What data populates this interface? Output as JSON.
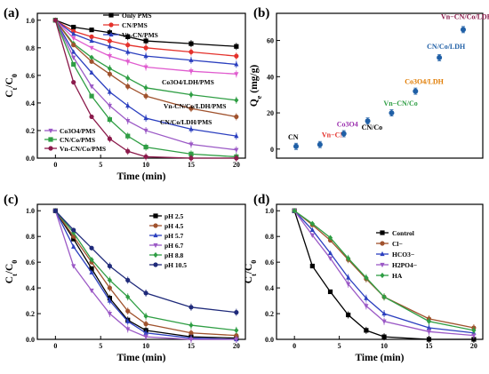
{
  "chart_data": [
    {
      "panel": "(a)",
      "type": "line",
      "xlabel": "Time (min)",
      "ylabel": "Ct/C0",
      "xlim": [
        -2,
        21
      ],
      "ylim": [
        0,
        1.05
      ],
      "xticks": [
        0,
        5,
        10,
        15,
        20
      ],
      "yticks": [
        0.0,
        0.2,
        0.4,
        0.6,
        0.8,
        1.0
      ],
      "x": [
        0,
        2,
        4,
        6,
        8,
        10,
        15,
        20
      ],
      "series": [
        {
          "name": "Only PMS",
          "color": "#000000",
          "marker": "square",
          "values": [
            1.0,
            0.95,
            0.93,
            0.91,
            0.88,
            0.85,
            0.83,
            0.81
          ]
        },
        {
          "name": "CN/PMS",
          "color": "#e4312b",
          "marker": "circle",
          "values": [
            1.0,
            0.92,
            0.88,
            0.85,
            0.82,
            0.8,
            0.77,
            0.74
          ]
        },
        {
          "name": "Vn-CN/PMS",
          "color": "#2b3fbf",
          "marker": "triangle",
          "values": [
            1.0,
            0.9,
            0.85,
            0.81,
            0.77,
            0.74,
            0.71,
            0.68
          ]
        },
        {
          "name": "Co3O4/LDH/PMS",
          "color": "#e05ccf",
          "marker": "triangle-down",
          "values": [
            1.0,
            0.87,
            0.8,
            0.74,
            0.7,
            0.66,
            0.63,
            0.61
          ]
        },
        {
          "name": "Co3O4/LDH/PMS",
          "color": "#2f9e44",
          "marker": "diamond",
          "values": [
            1.0,
            0.83,
            0.73,
            0.65,
            0.58,
            0.51,
            0.46,
            0.42
          ]
        },
        {
          "name": "Vn-CN/Co/LDH/PMS",
          "color": "#a0522d",
          "marker": "circle",
          "values": [
            1.0,
            0.82,
            0.7,
            0.61,
            0.52,
            0.45,
            0.36,
            0.3
          ]
        },
        {
          "name": "CN/Co/LDH/PMS",
          "color": "#2b3fbf",
          "marker": "triangle",
          "values": [
            1.0,
            0.77,
            0.62,
            0.48,
            0.38,
            0.29,
            0.21,
            0.16
          ]
        },
        {
          "name": "Co3O4/PMS",
          "color": "#9b59c6",
          "marker": "triangle-down",
          "values": [
            1.0,
            0.73,
            0.52,
            0.38,
            0.27,
            0.2,
            0.1,
            0.06
          ]
        },
        {
          "name": "CN/Co/PMS",
          "color": "#2f9e44",
          "marker": "square",
          "values": [
            1.0,
            0.68,
            0.45,
            0.28,
            0.16,
            0.08,
            0.03,
            0.01
          ]
        },
        {
          "name": "Vn-CN/Co/PMS",
          "color": "#8b1a4b",
          "marker": "circle",
          "values": [
            1.0,
            0.55,
            0.3,
            0.14,
            0.05,
            0.01,
            0.0,
            0.0
          ]
        }
      ]
    },
    {
      "panel": "(b)",
      "type": "scatter",
      "xlabel": "",
      "ylabel": "Qe (mg/g)",
      "ylim": [
        -5,
        75
      ],
      "yticks": [
        0,
        20,
        40,
        60
      ],
      "points": [
        {
          "label": "CN",
          "value": 1.5,
          "color": "#000000"
        },
        {
          "label": "Vn−CN",
          "value": 2.5,
          "color": "#e4312b"
        },
        {
          "label": "Co3O4",
          "value": 8.5,
          "color": "#9b2fae"
        },
        {
          "label": "CN/Co",
          "value": 15.5,
          "color": "#000000"
        },
        {
          "label": "Vn−CN/Co",
          "value": 20.0,
          "color": "#2f9e44"
        },
        {
          "label": "Co3O4/LDH",
          "value": 32.0,
          "color": "#e07b00"
        },
        {
          "label": "CN/Co/LDH",
          "value": 50.5,
          "color": "#1f5fa6"
        },
        {
          "label": "Vn−CN/Co/LDH",
          "value": 66.0,
          "color": "#8b1a4b"
        }
      ]
    },
    {
      "panel": "(c)",
      "type": "line",
      "xlabel": "Time (min)",
      "ylabel": "Ct/C0",
      "xlim": [
        -2,
        21
      ],
      "ylim": [
        0,
        1.05
      ],
      "xticks": [
        0,
        5,
        10,
        15,
        20
      ],
      "yticks": [
        0.0,
        0.2,
        0.4,
        0.6,
        0.8,
        1.0
      ],
      "x": [
        0,
        2,
        4,
        6,
        8,
        10,
        15,
        20
      ],
      "series": [
        {
          "name": "pH 2.5",
          "color": "#000000",
          "marker": "square",
          "values": [
            1.0,
            0.78,
            0.55,
            0.32,
            0.15,
            0.07,
            0.02,
            0.01
          ]
        },
        {
          "name": "pH 4.5",
          "color": "#a0522d",
          "marker": "circle",
          "values": [
            1.0,
            0.8,
            0.6,
            0.4,
            0.22,
            0.12,
            0.05,
            0.03
          ]
        },
        {
          "name": "pH 5.7",
          "color": "#2b3fbf",
          "marker": "triangle",
          "values": [
            1.0,
            0.72,
            0.52,
            0.3,
            0.14,
            0.05,
            0.01,
            0.0
          ]
        },
        {
          "name": "pH 6.7",
          "color": "#9b59c6",
          "marker": "triangle-down",
          "values": [
            1.0,
            0.57,
            0.38,
            0.2,
            0.08,
            0.02,
            0.0,
            0.0
          ]
        },
        {
          "name": "pH 8.8",
          "color": "#2f9e44",
          "marker": "diamond",
          "values": [
            1.0,
            0.83,
            0.62,
            0.46,
            0.33,
            0.18,
            0.11,
            0.07
          ]
        },
        {
          "name": "pH 10.5",
          "color": "#1f2a7a",
          "marker": "circle",
          "values": [
            1.0,
            0.85,
            0.71,
            0.57,
            0.46,
            0.36,
            0.25,
            0.21
          ]
        }
      ]
    },
    {
      "panel": "(d)",
      "type": "line",
      "xlabel": "Time (min)",
      "ylabel": "Ct/C0",
      "xlim": [
        -2,
        21
      ],
      "ylim": [
        0,
        1.05
      ],
      "xticks": [
        0,
        5,
        10,
        15,
        20
      ],
      "yticks": [
        0.0,
        0.2,
        0.4,
        0.6,
        0.8,
        1.0
      ],
      "x": [
        0,
        2,
        4,
        6,
        8,
        10,
        15,
        20
      ],
      "series": [
        {
          "name": "Control",
          "color": "#000000",
          "marker": "square",
          "values": [
            1.0,
            0.57,
            0.37,
            0.19,
            0.07,
            0.02,
            0.0,
            0.0
          ]
        },
        {
          "name": "Cl−",
          "color": "#a0522d",
          "marker": "circle",
          "values": [
            1.0,
            0.89,
            0.77,
            0.62,
            0.47,
            0.33,
            0.16,
            0.09
          ]
        },
        {
          "name": "HCO3−",
          "color": "#2b3fbf",
          "marker": "triangle",
          "values": [
            1.0,
            0.85,
            0.67,
            0.48,
            0.32,
            0.2,
            0.09,
            0.05
          ]
        },
        {
          "name": "H2PO4−",
          "color": "#9b59c6",
          "marker": "triangle-down",
          "values": [
            1.0,
            0.81,
            0.63,
            0.43,
            0.26,
            0.14,
            0.06,
            0.03
          ]
        },
        {
          "name": "HA",
          "color": "#2f9e44",
          "marker": "diamond",
          "values": [
            1.0,
            0.9,
            0.79,
            0.63,
            0.48,
            0.33,
            0.14,
            0.07
          ]
        }
      ]
    }
  ]
}
